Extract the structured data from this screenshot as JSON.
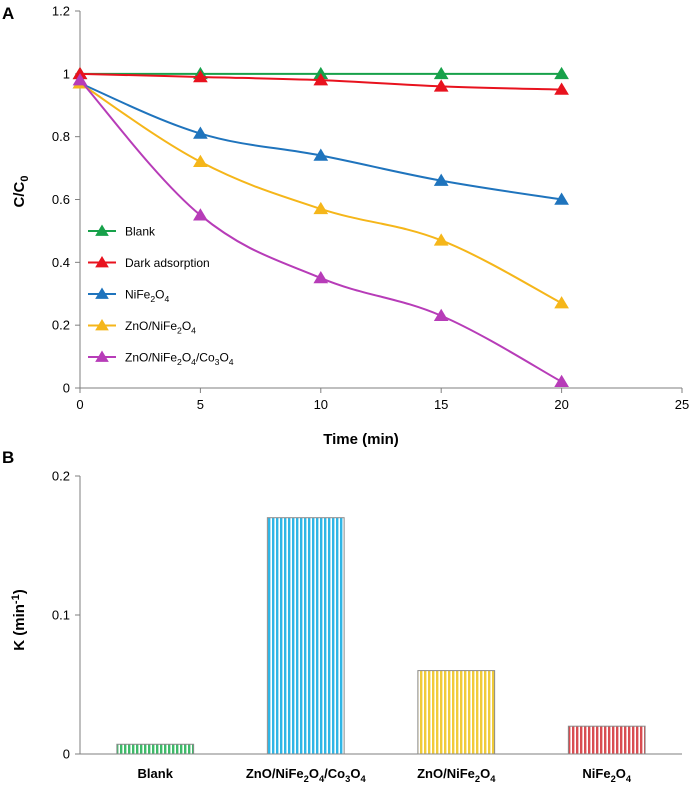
{
  "figure": {
    "panel_a_label": "A",
    "panel_b_label": "B"
  },
  "chart_data": [
    {
      "type": "line",
      "panel": "A",
      "title": "",
      "xlabel": "Time (min)",
      "ylabel": "C/C",
      "ylabel_sub": "0",
      "xlim": [
        0,
        25
      ],
      "ylim": [
        0,
        1.2
      ],
      "x_ticks": [
        "0",
        "5",
        "10",
        "15",
        "20",
        "25"
      ],
      "y_ticks": [
        "0",
        "0.2",
        "0.4",
        "0.6",
        "0.8",
        "1",
        "1.2"
      ],
      "x_tick_values": [
        0,
        5,
        10,
        15,
        20,
        25
      ],
      "y_tick_values": [
        0,
        0.2,
        0.4,
        0.6,
        0.8,
        1.0,
        1.2
      ],
      "grid": false,
      "legend_position": "left",
      "x": [
        0,
        5,
        10,
        15,
        20
      ],
      "series": [
        {
          "name": "Blank",
          "name_parts": [
            [
              "Blank",
              ""
            ]
          ],
          "color": "#17a14a",
          "values": [
            1.0,
            1.0,
            1.0,
            1.0,
            1.0
          ]
        },
        {
          "name": "Dark adsorption",
          "name_parts": [
            [
              "Dark adsorption",
              ""
            ]
          ],
          "color": "#e8121e",
          "values": [
            1.0,
            0.99,
            0.98,
            0.96,
            0.95
          ]
        },
        {
          "name": "NiFe2O4",
          "name_parts": [
            [
              "NiFe",
              ""
            ],
            [
              "2",
              "sub"
            ],
            [
              "O",
              ""
            ],
            [
              "4",
              "sub"
            ]
          ],
          "color": "#1f74bd",
          "values": [
            0.97,
            0.81,
            0.74,
            0.66,
            0.6
          ]
        },
        {
          "name": "ZnO/NiFe2O4",
          "name_parts": [
            [
              "ZnO/NiFe",
              ""
            ],
            [
              "2",
              "sub"
            ],
            [
              "O",
              ""
            ],
            [
              "4",
              "sub"
            ]
          ],
          "color": "#f5b61a",
          "values": [
            0.97,
            0.72,
            0.57,
            0.47,
            0.27
          ]
        },
        {
          "name": "ZnO/NiFe2O4/Co3O4",
          "name_parts": [
            [
              "ZnO/NiFe",
              ""
            ],
            [
              "2",
              "sub"
            ],
            [
              "O",
              ""
            ],
            [
              "4",
              "sub"
            ],
            [
              "/Co",
              ""
            ],
            [
              "3",
              "sub"
            ],
            [
              "O",
              ""
            ],
            [
              "4",
              "sub"
            ]
          ],
          "color": "#b73cb8",
          "values": [
            0.98,
            0.55,
            0.35,
            0.23,
            0.02
          ]
        }
      ]
    },
    {
      "type": "bar",
      "panel": "B",
      "title": "",
      "xlabel": "",
      "ylabel": "K (min",
      "ylabel_sup": "-1",
      "ylabel_close": ")",
      "ylim": [
        0,
        0.2
      ],
      "y_ticks": [
        "0",
        "0.1",
        "0.2"
      ],
      "y_tick_values": [
        0,
        0.1,
        0.2
      ],
      "grid": false,
      "categories": [
        "Blank",
        "ZnO/NiFe2O4/Co3O4",
        "ZnO/NiFe2O4",
        "NiFe2O4"
      ],
      "category_parts": [
        [
          [
            "Blank",
            ""
          ]
        ],
        [
          [
            "ZnO/NiFe",
            ""
          ],
          [
            "2",
            "sub"
          ],
          [
            "O",
            ""
          ],
          [
            "4",
            "sub"
          ],
          [
            "/Co",
            ""
          ],
          [
            "3",
            "sub"
          ],
          [
            "O",
            ""
          ],
          [
            "4",
            "sub"
          ]
        ],
        [
          [
            "ZnO/NiFe",
            ""
          ],
          [
            "2",
            "sub"
          ],
          [
            "O",
            ""
          ],
          [
            "4",
            "sub"
          ]
        ],
        [
          [
            "NiFe",
            ""
          ],
          [
            "2",
            "sub"
          ],
          [
            "O",
            ""
          ],
          [
            "4",
            "sub"
          ]
        ]
      ],
      "values": [
        0.007,
        0.17,
        0.06,
        0.02
      ],
      "bar_colors": [
        "#3fba6a",
        "#2fb6e6",
        "#f0cb3a",
        "#d94d52"
      ]
    }
  ]
}
